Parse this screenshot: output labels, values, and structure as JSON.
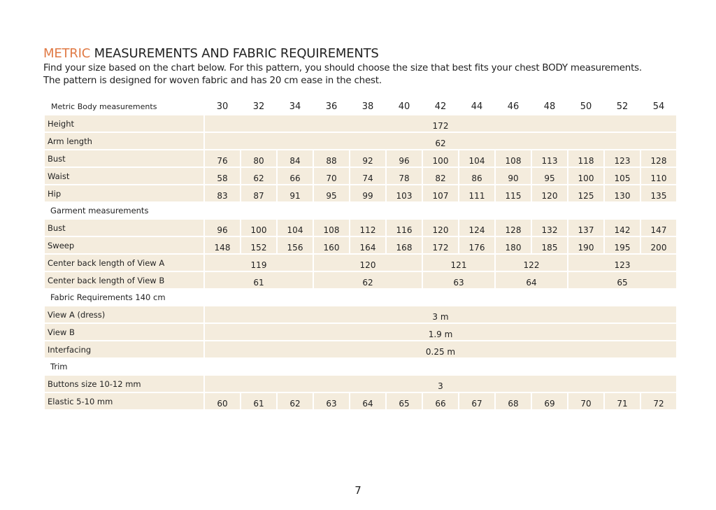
{
  "header": {
    "title_accent": "METRIC",
    "title": "MEASUREMENTS AND FABRIC REQUIREMENTS",
    "intro": [
      "Find your size based on the chart below. For this pattern, you should choose the size that best fits your chest BODY measurements.",
      "The pattern is designed for woven fabric and has 20 cm ease in the chest."
    ]
  },
  "table": {
    "header": {
      "label": "Metric Body measurements",
      "sizes": [
        30,
        32,
        34,
        36,
        38,
        40,
        42,
        44,
        46,
        48,
        50,
        52,
        54
      ]
    },
    "rows": [
      {
        "label": "Height",
        "values": [
          172
        ]
      },
      {
        "label": "Arm length",
        "values": [
          62
        ]
      },
      {
        "label": "Bust",
        "values": [
          76,
          80,
          84,
          88,
          92,
          96,
          100,
          104,
          108,
          113,
          118,
          123,
          128
        ]
      },
      {
        "label": "Waist",
        "values": [
          58,
          62,
          66,
          70,
          74,
          78,
          82,
          86,
          90,
          95,
          100,
          105,
          110
        ]
      },
      {
        "label": "Hip",
        "values": [
          83,
          87,
          91,
          95,
          99,
          103,
          107,
          111,
          115,
          120,
          125,
          130,
          135
        ]
      },
      {
        "label": "Garment measurements"
      },
      {
        "label": "Bust",
        "values": [
          96,
          100,
          104,
          108,
          112,
          116,
          120,
          124,
          128,
          132,
          137,
          142,
          147
        ]
      },
      {
        "label": "Sweep",
        "values": [
          148,
          152,
          156,
          160,
          164,
          168,
          172,
          176,
          180,
          185,
          190,
          195,
          200
        ]
      },
      {
        "label": "Center back length of View A",
        "values": [
          119,
          120,
          121,
          122,
          123
        ]
      },
      {
        "label": "Center back length of View  B",
        "values": [
          61,
          62,
          63,
          64,
          65
        ]
      },
      {
        "label": "Fabric Requirements 140 cm"
      },
      {
        "label": "View A (dress)",
        "values": [
          "3 m"
        ]
      },
      {
        "label": "View B",
        "values": [
          "1.9 m"
        ]
      },
      {
        "label": "Interfacing",
        "values": [
          "0.25 m"
        ]
      },
      {
        "label": "Trim"
      },
      {
        "label": "Buttons size 10-12 mm",
        "values": [
          3
        ]
      },
      {
        "label": "Elastic 5-10 mm",
        "values": [
          60,
          61,
          62,
          63,
          64,
          65,
          66,
          67,
          68,
          69,
          70,
          71,
          72
        ]
      }
    ]
  },
  "footer": {
    "page": 7
  }
}
